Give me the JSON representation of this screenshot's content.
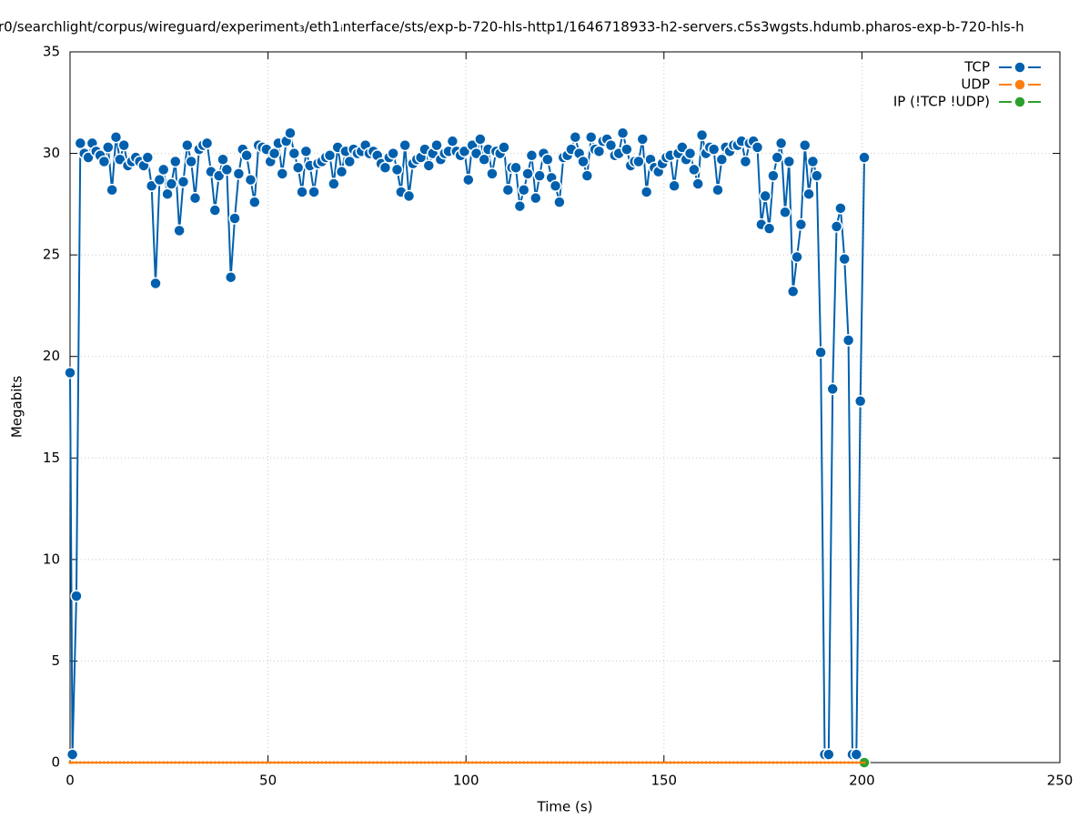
{
  "chart_data": {
    "type": "line",
    "title": "r0/searchlight/corpus/wireguard/experiment₃/eth1ᵢnterface/sts/exp-b-720-hls-http1/1646718933-h2-servers.c5s3wgsts.hdumb.pharos-exp-b-720-hls-h",
    "x_label": "Time (s)",
    "y_label": "Megabits",
    "xlim": [
      0,
      250
    ],
    "xticks": [
      0,
      50,
      100,
      150,
      200,
      250
    ],
    "ylim": [
      0,
      35
    ],
    "yticks": [
      0,
      5,
      10,
      15,
      20,
      25,
      30,
      35
    ],
    "grid": true,
    "legend": "top-right",
    "x": [
      0,
      0.6,
      1.6,
      2.6,
      3.6,
      4.6,
      5.6,
      6.6,
      7.6,
      8.6,
      9.6,
      10.6,
      11.6,
      12.6,
      13.6,
      14.6,
      15.6,
      16.6,
      17.6,
      18.6,
      19.6,
      20.6,
      21.6,
      22.6,
      23.6,
      24.6,
      25.6,
      26.6,
      27.6,
      28.6,
      29.6,
      30.6,
      31.6,
      32.6,
      33.6,
      34.6,
      35.6,
      36.6,
      37.6,
      38.6,
      39.6,
      40.6,
      41.6,
      42.6,
      43.6,
      44.6,
      45.6,
      46.6,
      47.6,
      48.6,
      49.6,
      50.6,
      51.6,
      52.6,
      53.6,
      54.6,
      55.6,
      56.6,
      57.6,
      58.6,
      59.6,
      60.6,
      61.6,
      62.6,
      63.6,
      64.6,
      65.6,
      66.6,
      67.6,
      68.6,
      69.6,
      70.6,
      71.6,
      72.6,
      73.6,
      74.6,
      75.6,
      76.6,
      77.6,
      78.6,
      79.6,
      80.6,
      81.6,
      82.6,
      83.6,
      84.6,
      85.6,
      86.6,
      87.6,
      88.6,
      89.6,
      90.6,
      91.6,
      92.6,
      93.6,
      94.6,
      95.6,
      96.6,
      97.6,
      98.6,
      99.6,
      100.6,
      101.6,
      102.6,
      103.6,
      104.6,
      105.6,
      106.6,
      107.6,
      108.6,
      109.6,
      110.6,
      111.6,
      112.6,
      113.6,
      114.6,
      115.6,
      116.6,
      117.6,
      118.6,
      119.6,
      120.6,
      121.6,
      122.6,
      123.6,
      124.6,
      125.6,
      126.6,
      127.6,
      128.6,
      129.6,
      130.6,
      131.6,
      132.6,
      133.6,
      134.6,
      135.6,
      136.6,
      137.6,
      138.6,
      139.6,
      140.6,
      141.6,
      142.6,
      143.6,
      144.6,
      145.6,
      146.6,
      147.6,
      148.6,
      149.6,
      150.6,
      151.6,
      152.6,
      153.6,
      154.6,
      155.6,
      156.6,
      157.6,
      158.6,
      159.6,
      160.6,
      161.6,
      162.6,
      163.6,
      164.6,
      165.6,
      166.6,
      167.6,
      168.6,
      169.6,
      170.6,
      171.6,
      172.6,
      173.6,
      174.6,
      175.6,
      176.6,
      177.6,
      178.6,
      179.6,
      180.6,
      181.6,
      182.6,
      183.6,
      184.6,
      185.6,
      186.6,
      187.6,
      188.6,
      189.6,
      190.6,
      191.6,
      192.6,
      193.6,
      194.6,
      195.6,
      196.6,
      197.6,
      198.6,
      199.6,
      200.6
    ],
    "series": [
      {
        "name": "TCP",
        "color": "#0060ad",
        "values": [
          19.2,
          0.4,
          8.2,
          30.5,
          30.0,
          29.8,
          30.5,
          30.1,
          29.9,
          29.6,
          30.3,
          28.2,
          30.8,
          29.7,
          30.4,
          29.4,
          29.6,
          29.8,
          29.6,
          29.4,
          29.8,
          28.4,
          23.6,
          28.7,
          29.2,
          28.0,
          28.5,
          29.6,
          26.2,
          28.6,
          30.4,
          29.6,
          27.8,
          30.2,
          30.4,
          30.5,
          29.1,
          27.2,
          28.9,
          29.7,
          29.2,
          23.9,
          26.8,
          29.0,
          30.2,
          29.9,
          28.7,
          27.6,
          30.4,
          30.3,
          30.2,
          29.6,
          30.0,
          30.5,
          29.0,
          30.6,
          31.0,
          30.0,
          29.3,
          28.1,
          30.1,
          29.4,
          28.1,
          29.5,
          29.6,
          29.8,
          29.9,
          28.5,
          30.3,
          29.1,
          30.1,
          29.6,
          30.2,
          30.0,
          30.1,
          30.4,
          30.0,
          30.1,
          29.9,
          29.5,
          29.3,
          29.8,
          30.0,
          29.2,
          28.1,
          30.4,
          27.9,
          29.5,
          29.7,
          29.8,
          30.2,
          29.4,
          30.0,
          30.4,
          29.7,
          30.0,
          30.1,
          30.6,
          30.1,
          29.9,
          30.1,
          28.7,
          30.4,
          30.0,
          30.7,
          29.7,
          30.2,
          29.0,
          30.1,
          30.0,
          30.3,
          28.2,
          29.3,
          29.3,
          27.4,
          28.2,
          29.0,
          29.9,
          27.8,
          28.9,
          30.0,
          29.7,
          28.8,
          28.4,
          27.6,
          29.8,
          29.9,
          30.2,
          30.8,
          30.0,
          29.6,
          28.9,
          30.8,
          30.2,
          30.1,
          30.6,
          30.7,
          30.4,
          29.9,
          30.0,
          31.0,
          30.2,
          29.4,
          29.6,
          29.6,
          30.7,
          28.1,
          29.7,
          29.3,
          29.1,
          29.5,
          29.8,
          29.9,
          28.4,
          30.0,
          30.3,
          29.7,
          30.0,
          29.2,
          28.5,
          30.9,
          30.0,
          30.3,
          30.2,
          28.2,
          29.7,
          30.3,
          30.1,
          30.4,
          30.4,
          30.6,
          29.6,
          30.5,
          30.6,
          30.3,
          26.5,
          27.9,
          26.3,
          28.9,
          29.8,
          30.5,
          27.1,
          29.6,
          23.2,
          24.9,
          26.5,
          30.4,
          28.0,
          29.6,
          28.9,
          20.2,
          0.4,
          0.4,
          18.4,
          26.4,
          27.3,
          24.8,
          20.8,
          0.4,
          0.4,
          17.8,
          29.8
        ]
      },
      {
        "name": "UDP",
        "color": "#ff7f0e",
        "values": [
          0,
          0,
          0,
          0,
          0,
          0,
          0,
          0,
          0,
          0,
          0,
          0,
          0,
          0,
          0,
          0,
          0,
          0,
          0,
          0,
          0,
          0,
          0,
          0,
          0,
          0,
          0,
          0,
          0,
          0,
          0,
          0,
          0,
          0,
          0,
          0,
          0,
          0,
          0,
          0,
          0,
          0,
          0,
          0,
          0,
          0,
          0,
          0,
          0,
          0,
          0,
          0,
          0,
          0,
          0,
          0,
          0,
          0,
          0,
          0,
          0,
          0,
          0,
          0,
          0,
          0,
          0,
          0,
          0,
          0,
          0,
          0,
          0,
          0,
          0,
          0,
          0,
          0,
          0,
          0,
          0,
          0,
          0,
          0,
          0,
          0,
          0,
          0,
          0,
          0,
          0,
          0,
          0,
          0,
          0,
          0,
          0,
          0,
          0,
          0,
          0,
          0,
          0,
          0,
          0,
          0,
          0,
          0,
          0,
          0,
          0,
          0,
          0,
          0,
          0,
          0,
          0,
          0,
          0,
          0,
          0,
          0,
          0,
          0,
          0,
          0,
          0,
          0,
          0,
          0,
          0,
          0,
          0,
          0,
          0,
          0,
          0,
          0,
          0,
          0,
          0,
          0,
          0,
          0,
          0,
          0,
          0,
          0,
          0,
          0,
          0,
          0,
          0,
          0,
          0,
          0,
          0,
          0,
          0,
          0,
          0,
          0,
          0,
          0,
          0,
          0,
          0,
          0,
          0,
          0,
          0,
          0,
          0,
          0,
          0,
          0,
          0,
          0,
          0,
          0,
          0,
          0,
          0,
          0,
          0,
          0,
          0,
          0,
          0,
          0,
          0,
          0,
          0,
          0,
          0,
          0,
          0,
          0,
          0,
          0,
          0,
          0
        ]
      },
      {
        "name": "IP (!TCP  !UDP)",
        "color": "#2ca02c",
        "values": [
          0,
          0,
          0,
          0,
          0,
          0,
          0,
          0,
          0,
          0,
          0,
          0,
          0,
          0,
          0,
          0,
          0,
          0,
          0,
          0,
          0,
          0,
          0,
          0,
          0,
          0,
          0,
          0,
          0,
          0,
          0,
          0,
          0,
          0,
          0,
          0,
          0,
          0,
          0,
          0,
          0,
          0,
          0,
          0,
          0,
          0,
          0,
          0,
          0,
          0,
          0,
          0,
          0,
          0,
          0,
          0,
          0,
          0,
          0,
          0,
          0,
          0,
          0,
          0,
          0,
          0,
          0,
          0,
          0,
          0,
          0,
          0,
          0,
          0,
          0,
          0,
          0,
          0,
          0,
          0,
          0,
          0,
          0,
          0,
          0,
          0,
          0,
          0,
          0,
          0,
          0,
          0,
          0,
          0,
          0,
          0,
          0,
          0,
          0,
          0,
          0,
          0,
          0,
          0,
          0,
          0,
          0,
          0,
          0,
          0,
          0,
          0,
          0,
          0,
          0,
          0,
          0,
          0,
          0,
          0,
          0,
          0,
          0,
          0,
          0,
          0,
          0,
          0,
          0,
          0,
          0,
          0,
          0,
          0,
          0,
          0,
          0,
          0,
          0,
          0,
          0,
          0,
          0,
          0,
          0,
          0,
          0,
          0,
          0,
          0,
          0,
          0,
          0,
          0,
          0,
          0,
          0,
          0,
          0,
          0,
          0,
          0,
          0,
          0,
          0,
          0,
          0,
          0,
          0,
          0,
          0,
          0,
          0,
          0,
          0,
          0,
          0,
          0,
          0,
          0,
          0,
          0,
          0,
          0,
          0,
          0,
          0,
          0,
          0,
          0,
          0,
          0,
          0,
          0,
          0,
          0,
          0,
          0,
          0,
          0,
          0,
          0
        ]
      }
    ]
  }
}
